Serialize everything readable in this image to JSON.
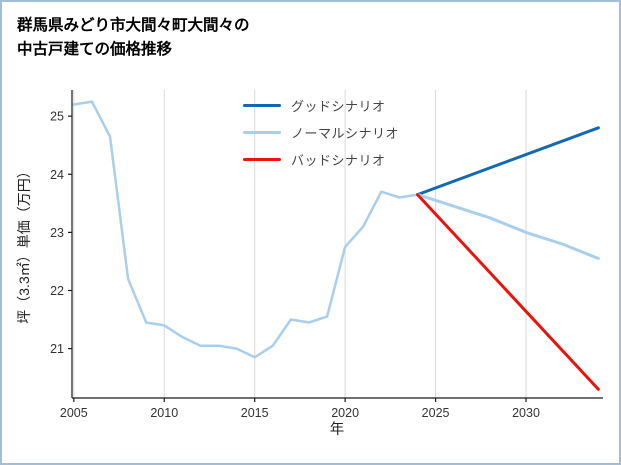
{
  "title": {
    "line1": "群馬県みどり市大間々町大間々の",
    "line2": "中古戸建ての価格推移"
  },
  "colors": {
    "frame_border": "#a3bed8",
    "grid": "#d9d9d9",
    "axis": "#1a1a1a",
    "tick_label": "#333333",
    "legend_text": "#444444",
    "good_scenario": "#1268b3",
    "normal_scenario": "#a9cfee",
    "bad_scenario": "#e8150f"
  },
  "chart_data": {
    "type": "line",
    "title": "群馬県みどり市大間々町大間々の中古戸建ての価格推移",
    "xlabel": "年",
    "ylabel": "坪（3.3㎡）単価（万円）",
    "xlim": [
      2004.9,
      2034.2
    ],
    "ylim": [
      20.15,
      25.45
    ],
    "x_ticks": [
      2005,
      2010,
      2015,
      2020,
      2025,
      2030
    ],
    "y_ticks": [
      21,
      22,
      23,
      24,
      25
    ],
    "grid": "vertical-only",
    "legend_position": "inside-top-center",
    "series": [
      {
        "id": "history",
        "color": "#a9cfee",
        "width": 2.5,
        "points": [
          [
            2005,
            25.2
          ],
          [
            2006,
            25.25
          ],
          [
            2007,
            24.65
          ],
          [
            2008,
            22.2
          ],
          [
            2009,
            21.45
          ],
          [
            2010,
            21.4
          ],
          [
            2011,
            21.2
          ],
          [
            2012,
            21.05
          ],
          [
            2013,
            21.05
          ],
          [
            2014,
            21.0
          ],
          [
            2015,
            20.85
          ],
          [
            2016,
            21.05
          ],
          [
            2017,
            21.5
          ],
          [
            2018,
            21.45
          ],
          [
            2019,
            21.55
          ],
          [
            2020,
            22.75
          ],
          [
            2021,
            23.1
          ],
          [
            2022,
            23.7
          ],
          [
            2023,
            23.6
          ],
          [
            2024,
            23.65
          ]
        ]
      },
      {
        "id": "good",
        "label": "グッドシナリオ",
        "color": "#1268b3",
        "width": 3,
        "points": [
          [
            2024,
            23.65
          ],
          [
            2034,
            24.8
          ]
        ]
      },
      {
        "id": "normal",
        "label": "ノーマルシナリオ",
        "color": "#a9cfee",
        "width": 3,
        "points": [
          [
            2024,
            23.65
          ],
          [
            2026,
            23.45
          ],
          [
            2028,
            23.25
          ],
          [
            2030,
            23.0
          ],
          [
            2032,
            22.8
          ],
          [
            2034,
            22.55
          ]
        ]
      },
      {
        "id": "bad",
        "label": "バッドシナリオ",
        "color": "#e8150f",
        "width": 3,
        "points": [
          [
            2024,
            23.65
          ],
          [
            2034,
            20.3
          ]
        ]
      }
    ],
    "legend": [
      {
        "label": "グッドシナリオ",
        "series": 1
      },
      {
        "label": "ノーマルシナリオ",
        "series": 2
      },
      {
        "label": "バッドシナリオ",
        "series": 3
      }
    ]
  }
}
